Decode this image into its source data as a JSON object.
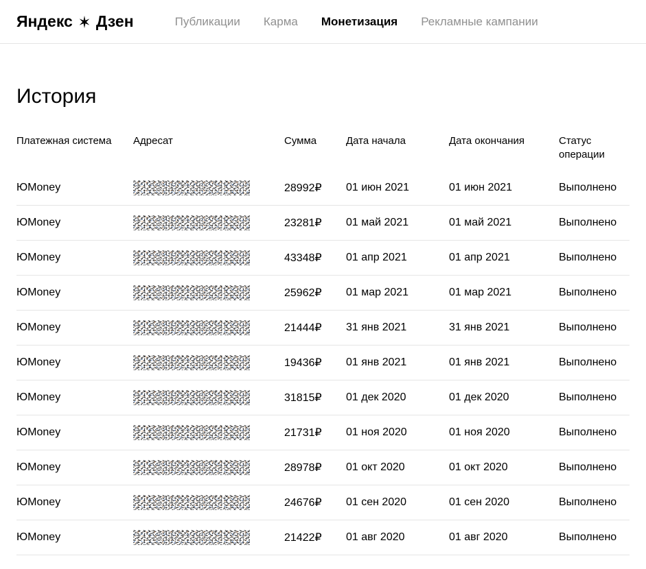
{
  "header": {
    "logo_prefix": "Яндекс",
    "logo_suffix": "Дзен",
    "nav": [
      {
        "label": "Публикации",
        "active": false
      },
      {
        "label": "Карма",
        "active": false
      },
      {
        "label": "Монетизация",
        "active": true
      },
      {
        "label": "Рекламные кампании",
        "active": false
      }
    ]
  },
  "page": {
    "title": "История"
  },
  "table": {
    "columns": {
      "payment_system": "Платежная система",
      "recipient": "Адресат",
      "amount": "Сумма",
      "start_date": "Дата начала",
      "end_date": "Дата окончания",
      "status": "Статус операции"
    },
    "currency_symbol": "₽",
    "rows": [
      {
        "payment_system": "ЮMoney",
        "amount": "28992",
        "start_date": "01 июн 2021",
        "end_date": "01 июн 2021",
        "status": "Выполнено"
      },
      {
        "payment_system": "ЮMoney",
        "amount": "23281",
        "start_date": "01 май 2021",
        "end_date": "01 май 2021",
        "status": "Выполнено"
      },
      {
        "payment_system": "ЮMoney",
        "amount": "43348",
        "start_date": "01 апр 2021",
        "end_date": "01 апр 2021",
        "status": "Выполнено"
      },
      {
        "payment_system": "ЮMoney",
        "amount": "25962",
        "start_date": "01 мар 2021",
        "end_date": "01 мар 2021",
        "status": "Выполнено"
      },
      {
        "payment_system": "ЮMoney",
        "amount": "21444",
        "start_date": "31 янв 2021",
        "end_date": "31 янв 2021",
        "status": "Выполнено"
      },
      {
        "payment_system": "ЮMoney",
        "amount": "19436",
        "start_date": "01 янв 2021",
        "end_date": "01 янв 2021",
        "status": "Выполнено"
      },
      {
        "payment_system": "ЮMoney",
        "amount": "31815",
        "start_date": "01 дек 2020",
        "end_date": "01 дек 2020",
        "status": "Выполнено"
      },
      {
        "payment_system": "ЮMoney",
        "amount": "21731",
        "start_date": "01 ноя 2020",
        "end_date": "01 ноя 2020",
        "status": "Выполнено"
      },
      {
        "payment_system": "ЮMoney",
        "amount": "28978",
        "start_date": "01 окт 2020",
        "end_date": "01 окт 2020",
        "status": "Выполнено"
      },
      {
        "payment_system": "ЮMoney",
        "amount": "24676",
        "start_date": "01 сен 2020",
        "end_date": "01 сен 2020",
        "status": "Выполнено"
      },
      {
        "payment_system": "ЮMoney",
        "amount": "21422",
        "start_date": "01 авг 2020",
        "end_date": "01 авг 2020",
        "status": "Выполнено"
      }
    ]
  },
  "styles": {
    "background_color": "#ffffff",
    "text_color": "#000000",
    "nav_inactive_color": "#909090",
    "border_color": "#e5e5e5"
  }
}
